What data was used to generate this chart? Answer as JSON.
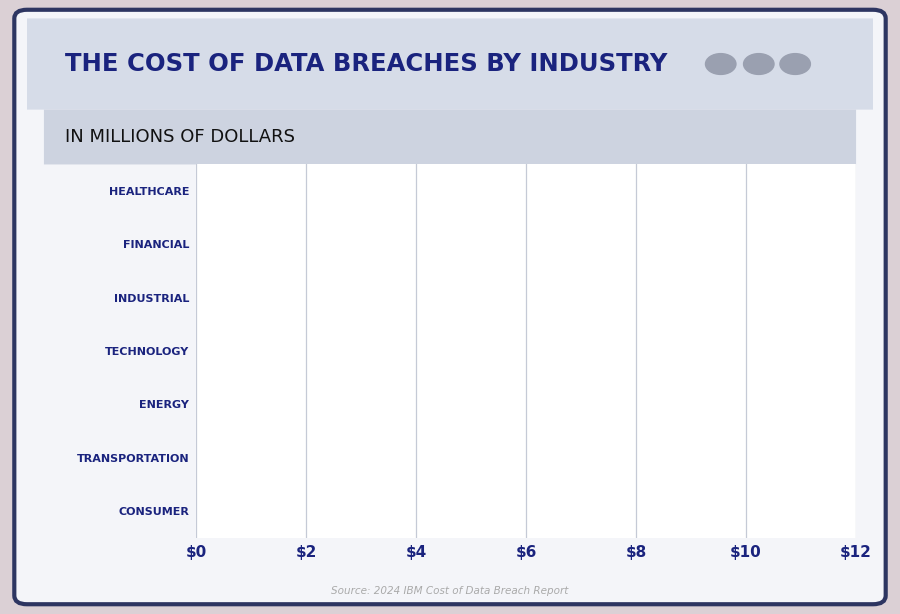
{
  "title": "THE COST OF DATA BREACHES BY INDUSTRY",
  "subtitle": "IN MILLIONS OF DOLLARS",
  "source": "Source: 2024 IBM Cost of Data Breach Report",
  "categories": [
    "HEALTHCARE",
    "FINANCIAL",
    "INDUSTRIAL",
    "TECHNOLOGY",
    "ENERGY",
    "TRANSPORTATION",
    "CONSUMER"
  ],
  "xlim": [
    0,
    12
  ],
  "xticks": [
    0,
    2,
    4,
    6,
    8,
    10,
    12
  ],
  "xtick_labels": [
    "$0",
    "$2",
    "$4",
    "$6",
    "$8",
    "$10",
    "$12"
  ],
  "title_color": "#1a237e",
  "title_bg_color": "#d6dce8",
  "subtitle_bg_color": "#cdd3e0",
  "chart_bg_color": "#ffffff",
  "grid_color": "#c5cad6",
  "label_color": "#1a237e",
  "tick_color": "#1a237e",
  "outer_bg_color": "#dbd0d5",
  "frame_bg_color": "#f4f5f9",
  "dots_color": "#9aa0b0",
  "source_color": "#aaaaaa",
  "border_color": "#2d3561"
}
